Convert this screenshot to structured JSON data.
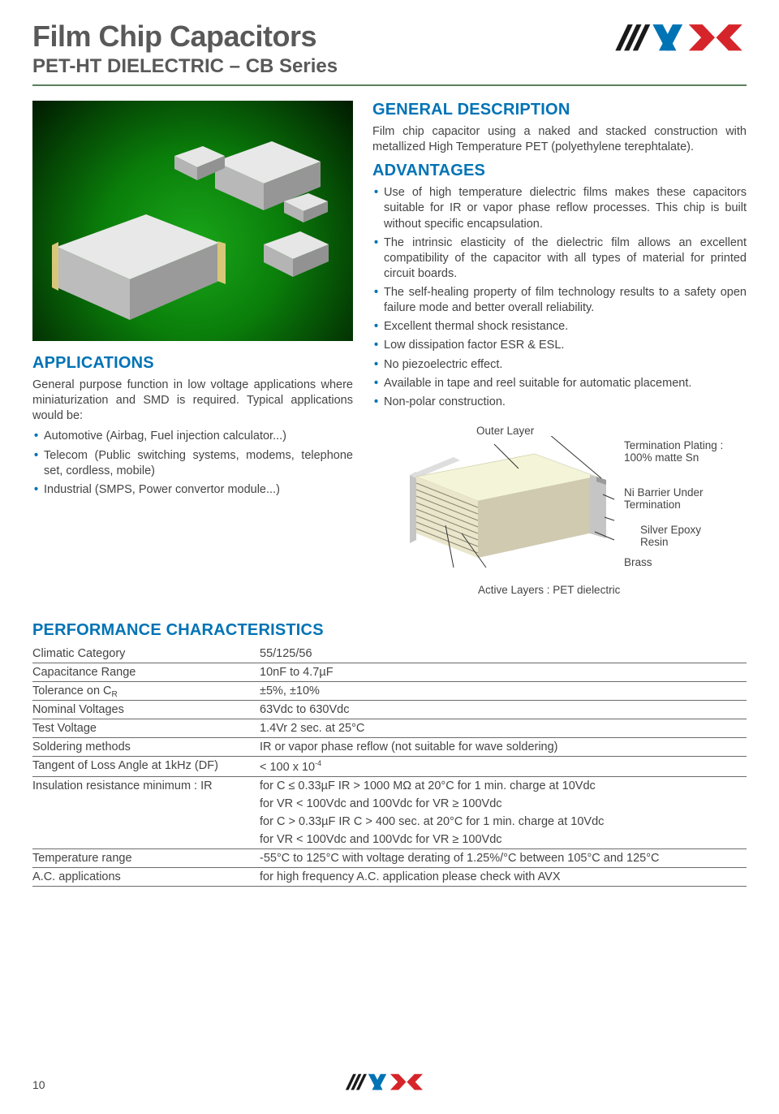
{
  "header": {
    "title": "Film Chip Capacitors",
    "subtitle": "PET-HT DIELECTRIC – CB Series",
    "logo_colors": {
      "slash": "#1a1a1a",
      "v": "#0073b5",
      "x": "#d6252a"
    }
  },
  "applications": {
    "heading": "APPLICATIONS",
    "intro": "General purpose function in low voltage applications where miniaturization and SMD is required. Typical applications would be:",
    "items": [
      "Automotive (Airbag, Fuel injection calculator...)",
      "Telecom (Public switching systems, modems, telephone set, cordless, mobile)",
      "Industrial (SMPS, Power convertor module...)"
    ]
  },
  "general_desc": {
    "heading": "GENERAL DESCRIPTION",
    "text": "Film chip capacitor using a naked and stacked construction with metallized High Temperature PET (polyethylene terephtalate)."
  },
  "advantages": {
    "heading": "ADVANTAGES",
    "items": [
      "Use of high temperature dielectric films makes these capacitors suitable for IR or vapor phase reflow processes. This chip is built without specific encapsulation.",
      "The intrinsic elasticity of the dielectric film allows an excellent compatibility of the capacitor with all types of material for printed circuit boards.",
      "The self-healing property of film technology results to a safety open failure mode and better overall reliability.",
      "Excellent thermal shock resistance.",
      "Low dissipation factor ESR & ESL.",
      "No piezoelectric effect.",
      "Available in tape and reel suitable for automatic placement.",
      "Non-polar construction."
    ]
  },
  "diagram": {
    "labels": {
      "outer": "Outer Layer",
      "term_plating": "Termination Plating :\n100% matte Sn",
      "ni_barrier": "Ni Barrier Under\nTermination",
      "silver": "Silver Epoxy\nResin",
      "brass": "Brass",
      "active": "Active Layers : PET dielectric"
    },
    "colors": {
      "top_face": "#f4f4d8",
      "side_lines": "#8a8470",
      "end_cap": "#c5c5c5",
      "end_cap_dark": "#9a9a9a"
    }
  },
  "performance": {
    "heading": "PERFORMANCE CHARACTERISTICS",
    "rows": [
      {
        "label": "Climatic Category",
        "value": "55/125/56"
      },
      {
        "label": "Capacitance Range",
        "value": "10nF to 4.7µF"
      },
      {
        "label": "Tolerance on C",
        "sub": "R",
        "value": "±5%, ±10%"
      },
      {
        "label": "Nominal Voltages",
        "value": "63Vdc to 630Vdc"
      },
      {
        "label": "Test Voltage",
        "value": "1.4Vr 2 sec. at 25°C"
      },
      {
        "label": "Soldering methods",
        "value": "IR or vapor phase reflow (not suitable for wave soldering)"
      },
      {
        "label": "Tangent of Loss Angle at 1kHz (DF)",
        "value_html": "< 100 x 10",
        "sup": "-4"
      },
      {
        "label": "Insulation resistance minimum : IR",
        "value": "for C ≤ 0.33µF   IR > 1000 MΩ at 20°C for 1 min. charge at 10Vdc"
      },
      {
        "label": "",
        "value": "for VR < 100Vdc and 100Vdc for VR ≥ 100Vdc",
        "noborder_above": true
      },
      {
        "label": "",
        "value": "for C > 0.33µF   IR C > 400 sec. at 20°C for 1 min. charge at 10Vdc",
        "noborder_above": true
      },
      {
        "label": "",
        "value": "for VR < 100Vdc and 100Vdc for VR ≥ 100Vdc",
        "noborder_above": true
      },
      {
        "label": "Temperature range",
        "value": "-55°C to 125°C with voltage derating of 1.25%/°C between 105°C and 125°C"
      },
      {
        "label": "A.C. applications",
        "value": "for high frequency A.C. application please check with AVX"
      }
    ]
  },
  "footer": {
    "page": "10"
  }
}
